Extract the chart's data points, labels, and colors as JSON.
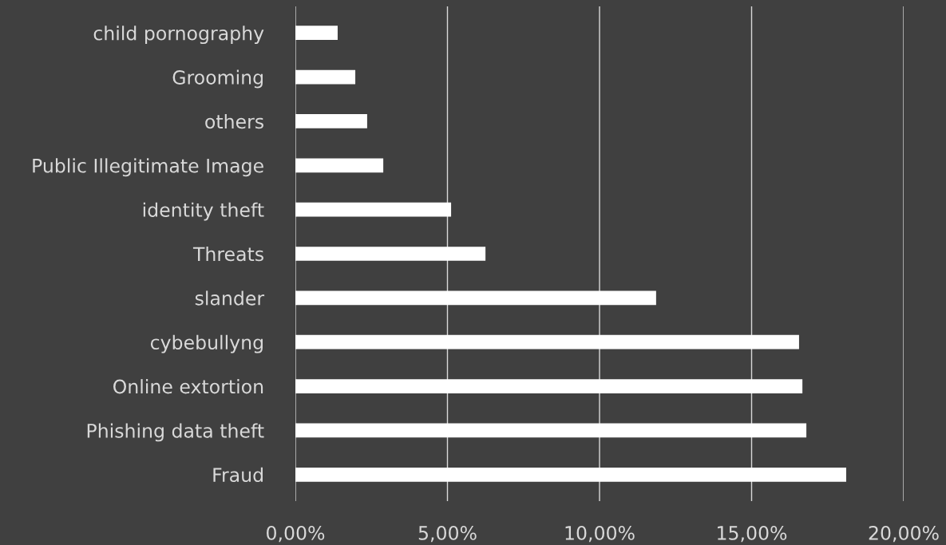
{
  "chart_data": {
    "type": "bar",
    "orientation": "horizontal",
    "categories": [
      "child pornography",
      "Grooming",
      "others",
      "Public Illegitimate Image",
      "identity theft",
      "Threats",
      "slander",
      "cybebullyng",
      "Online extortion",
      "Phishing data theft",
      "Fraud"
    ],
    "values": [
      1.39,
      1.97,
      2.36,
      2.89,
      5.12,
      6.25,
      11.86,
      16.56,
      16.67,
      16.8,
      18.11
    ],
    "color": "#ffffff",
    "xlim": [
      0,
      20
    ],
    "xticks": [
      {
        "value": 0,
        "label": "0,00%"
      },
      {
        "value": 5,
        "label": "5,00%"
      },
      {
        "value": 10,
        "label": "10,00%"
      },
      {
        "value": 15,
        "label": "15,00%"
      },
      {
        "value": 20,
        "label": "20,00%"
      }
    ],
    "grid": "x"
  }
}
